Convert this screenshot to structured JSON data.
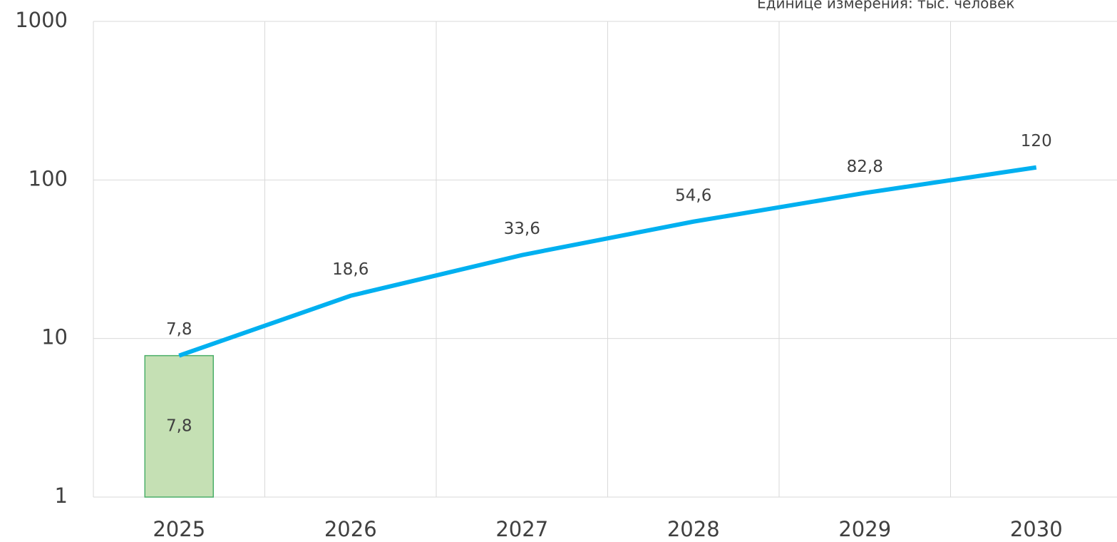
{
  "chart_data": {
    "type": "combo",
    "subtitle": "Единице измерения: тыс. человек",
    "categories": [
      "2025",
      "2026",
      "2027",
      "2028",
      "2029",
      "2030"
    ],
    "series": [
      {
        "type": "bar",
        "color": "#c5e0b4",
        "edge_color": "#4caf6a",
        "values": [
          7.8,
          null,
          null,
          null,
          null,
          null
        ],
        "value_labels": [
          "7,8",
          null,
          null,
          null,
          null,
          null
        ]
      },
      {
        "type": "line",
        "color": "#00b0f0",
        "values": [
          7.8,
          18.6,
          33.6,
          54.6,
          82.8,
          120
        ],
        "value_labels": [
          "7,8",
          "18,6",
          "33,6",
          "54,6",
          "82,8",
          "120"
        ]
      }
    ],
    "ylim": [
      1,
      1000
    ],
    "yticks": [
      1,
      10,
      100,
      1000
    ],
    "log_y": true,
    "grid": true
  }
}
